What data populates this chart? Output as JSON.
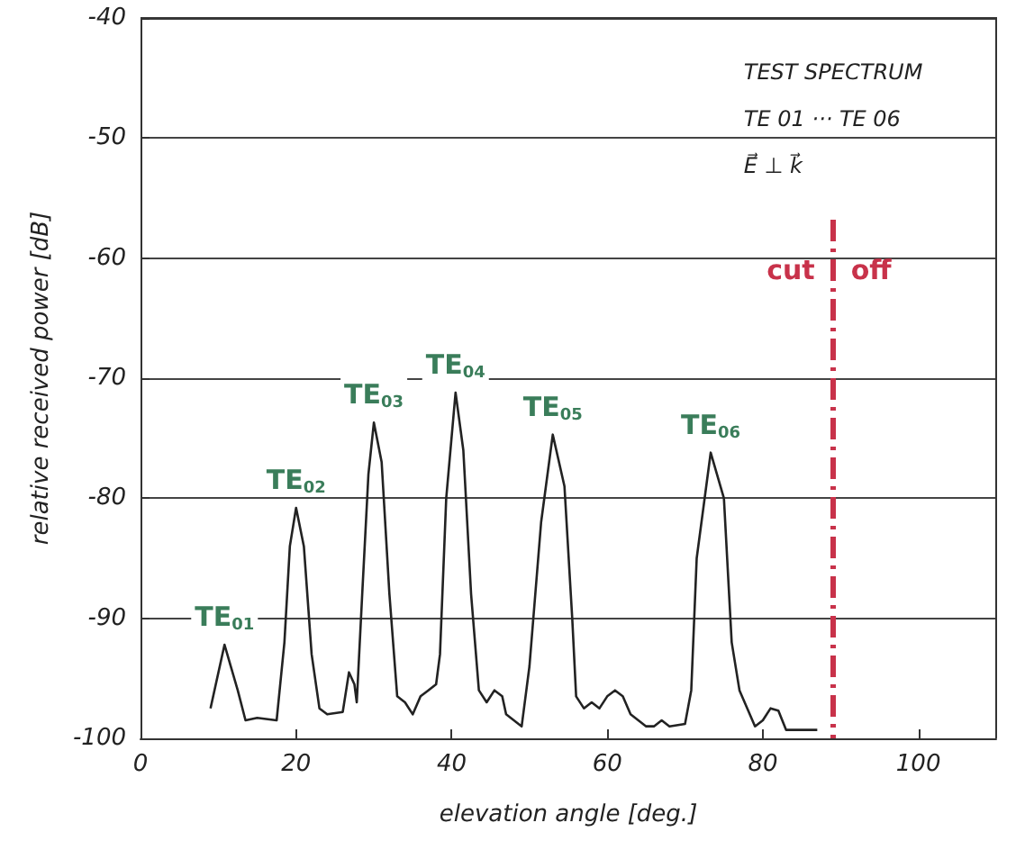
{
  "chart_data": {
    "type": "line",
    "xlabel": "elevation angle [deg.]",
    "ylabel": "relative received power [dB]",
    "xlim": [
      0,
      110
    ],
    "xticks": [
      0,
      20,
      40,
      60,
      80,
      100
    ],
    "ylim": [
      -100,
      -40
    ],
    "yticks": [
      -100,
      -90,
      -80,
      -70,
      -60,
      -50,
      -40
    ],
    "grid": "y",
    "marker": "none",
    "line_style": "solid",
    "series": [
      {
        "color": "#222222",
        "x": [
          9,
          10.8,
          12.5,
          13.5,
          15,
          17.5,
          18.5,
          19.2,
          20,
          21,
          22,
          23,
          24,
          26,
          26.8,
          27.5,
          27.8,
          28.5,
          29.3,
          30,
          31,
          32,
          33,
          34,
          35,
          36,
          37,
          38,
          38.5,
          39.3,
          40.5,
          41.5,
          42.5,
          43.5,
          44.5,
          45.5,
          46.5,
          47,
          48,
          49,
          50,
          51.5,
          53,
          54.5,
          55.5,
          56,
          57,
          58,
          59,
          60,
          61,
          62,
          63,
          64,
          65,
          66,
          67,
          68,
          70,
          70.8,
          71.5,
          73.3,
          75,
          76,
          77,
          78,
          79,
          80,
          81,
          82,
          83,
          87
        ],
        "values": [
          -97.5,
          -92.2,
          -96,
          -98.5,
          -98.3,
          -98.5,
          -92,
          -84,
          -80.8,
          -84,
          -93,
          -97.5,
          -98,
          -97.8,
          -94.5,
          -95.5,
          -97,
          -88,
          -78,
          -73.7,
          -77,
          -88,
          -96.5,
          -97,
          -98,
          -96.5,
          -96,
          -95.5,
          -93,
          -80,
          -71.2,
          -76,
          -88,
          -96,
          -97,
          -96,
          -96.5,
          -98,
          -98.5,
          -99,
          -94,
          -82,
          -74.7,
          -79,
          -90,
          -96.5,
          -97.5,
          -97,
          -97.5,
          -96.5,
          -96,
          -96.5,
          -98,
          -98.5,
          -99,
          -99,
          -98.5,
          -99,
          -98.8,
          -96,
          -85,
          -76.2,
          -80,
          -92,
          -96,
          -97.5,
          -99,
          -98.5,
          -97.5,
          -97.7,
          -99.3,
          -99.3
        ]
      }
    ],
    "ref_lines": [
      {
        "axis": "x",
        "value": 89,
        "color": "#c8324a",
        "line_style": "dashdot",
        "label": "cut off"
      }
    ],
    "annotations": [
      "TEST SPECTRUM",
      "TE 01 ··· TE 06",
      "E⃗ ⊥ k⃗",
      {
        "text": "TE$_{01}$",
        "x": 10.8,
        "y": -92.2
      },
      {
        "text": "TE$_{02}$",
        "x": 20,
        "y": -80.8
      },
      {
        "text": "TE$_{03}$",
        "x": 30,
        "y": -73.7
      },
      {
        "text": "TE$_{04}$",
        "x": 40.5,
        "y": -71.2
      },
      {
        "text": "TE$_{05}$",
        "x": 53,
        "y": -74.7
      },
      {
        "text": "TE$_{06}$",
        "x": 73.3,
        "y": -76.2
      }
    ]
  }
}
